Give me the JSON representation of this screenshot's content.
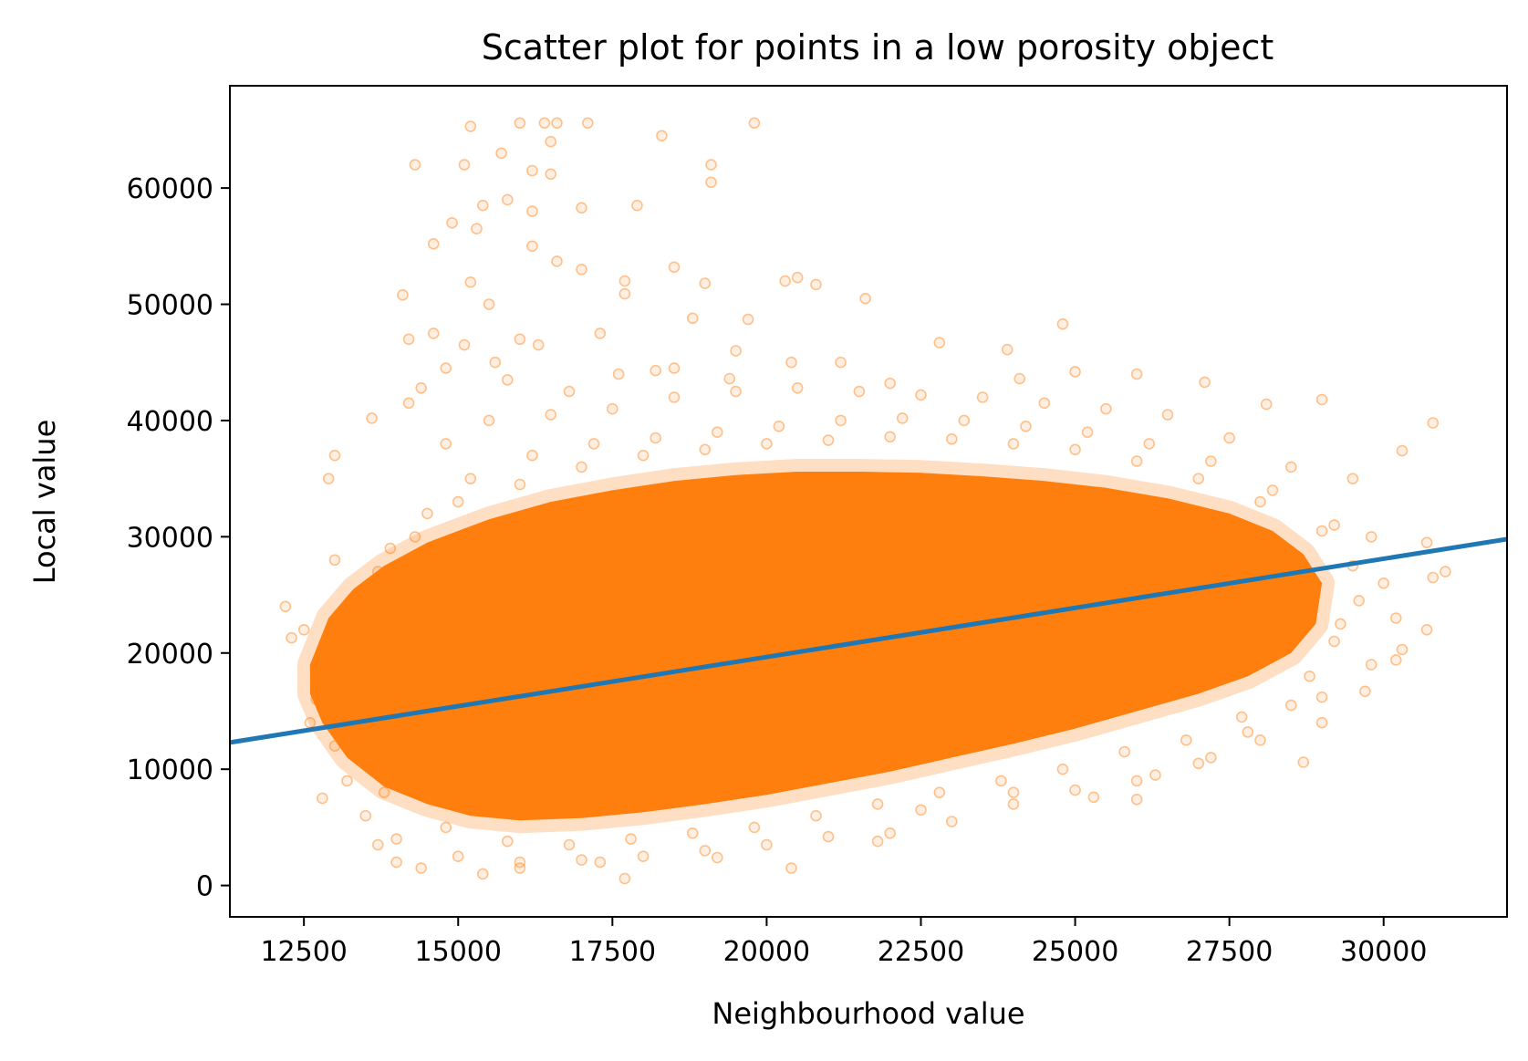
{
  "chart_data": {
    "type": "scatter",
    "title": "Scatter plot for points in a low porosity object",
    "xlabel": "Neighbourhood value",
    "ylabel": "Local value",
    "xlim": [
      11300,
      32000
    ],
    "ylim": [
      -2700,
      68800
    ],
    "x_ticks": [
      12500,
      15000,
      17500,
      20000,
      22500,
      25000,
      27500,
      30000
    ],
    "x_tick_labels": [
      "12500",
      "15000",
      "17500",
      "20000",
      "22500",
      "25000",
      "27500",
      "30000"
    ],
    "y_ticks": [
      0,
      10000,
      20000,
      30000,
      40000,
      50000,
      60000
    ],
    "y_tick_labels": [
      "0",
      "10000",
      "20000",
      "30000",
      "40000",
      "50000",
      "60000"
    ],
    "grid": false,
    "colors": {
      "points": "#ff7f0e",
      "fit_line": "#1f77b4"
    },
    "series": [
      {
        "kind": "scatter",
        "point_style": "hollow circles, low alpha",
        "points": [
          [
            15200,
            65300
          ],
          [
            16400,
            65600
          ],
          [
            16600,
            65600
          ],
          [
            17100,
            65600
          ],
          [
            19800,
            65600
          ],
          [
            16000,
            65600
          ],
          [
            15700,
            63000
          ],
          [
            16500,
            64000
          ],
          [
            18300,
            64500
          ],
          [
            19100,
            62000
          ],
          [
            19100,
            60500
          ],
          [
            15100,
            62000
          ],
          [
            14300,
            62000
          ],
          [
            16200,
            61500
          ],
          [
            16500,
            61200
          ],
          [
            15400,
            58500
          ],
          [
            15800,
            59000
          ],
          [
            16200,
            58000
          ],
          [
            17000,
            58300
          ],
          [
            17900,
            58500
          ],
          [
            15300,
            56500
          ],
          [
            14900,
            57000
          ],
          [
            14600,
            55200
          ],
          [
            16200,
            55000
          ],
          [
            16600,
            53700
          ],
          [
            17000,
            53000
          ],
          [
            17700,
            52000
          ],
          [
            18500,
            53200
          ],
          [
            19000,
            51800
          ],
          [
            20300,
            52000
          ],
          [
            20500,
            52300
          ],
          [
            20800,
            51700
          ],
          [
            21600,
            50500
          ],
          [
            14100,
            50800
          ],
          [
            15200,
            51900
          ],
          [
            15500,
            50000
          ],
          [
            17700,
            50900
          ],
          [
            18800,
            48800
          ],
          [
            19700,
            48700
          ],
          [
            24800,
            48300
          ],
          [
            22800,
            46700
          ],
          [
            23900,
            46100
          ],
          [
            19500,
            46000
          ],
          [
            14200,
            47000
          ],
          [
            14600,
            47500
          ],
          [
            16000,
            47000
          ],
          [
            17300,
            47500
          ],
          [
            13000,
            37000
          ],
          [
            12900,
            35000
          ],
          [
            12300,
            21300
          ],
          [
            12500,
            22000
          ],
          [
            12600,
            14000
          ],
          [
            12800,
            7500
          ],
          [
            13000,
            12000
          ],
          [
            13700,
            3500
          ],
          [
            14000,
            2000
          ],
          [
            14400,
            1500
          ],
          [
            15400,
            1000
          ],
          [
            16000,
            1500
          ],
          [
            17700,
            600
          ],
          [
            17300,
            2000
          ],
          [
            20400,
            1500
          ],
          [
            19200,
            2400
          ],
          [
            21800,
            3800
          ],
          [
            22500,
            6500
          ],
          [
            24000,
            8000
          ],
          [
            25300,
            7600
          ],
          [
            26000,
            7400
          ],
          [
            26300,
            9500
          ],
          [
            27200,
            11000
          ],
          [
            27800,
            13200
          ],
          [
            28700,
            10600
          ],
          [
            29000,
            16200
          ],
          [
            29700,
            16700
          ],
          [
            30200,
            19400
          ],
          [
            30300,
            20300
          ],
          [
            30700,
            22000
          ],
          [
            30800,
            26500
          ],
          [
            31000,
            27000
          ],
          [
            30700,
            29500
          ],
          [
            30800,
            39800
          ],
          [
            30300,
            37400
          ],
          [
            29000,
            41800
          ],
          [
            28100,
            41400
          ],
          [
            27100,
            43300
          ],
          [
            26000,
            44000
          ],
          [
            25000,
            44200
          ],
          [
            24100,
            43600
          ],
          [
            22000,
            43200
          ],
          [
            21200,
            45000
          ],
          [
            20400,
            45000
          ],
          [
            18500,
            44500
          ],
          [
            19400,
            43600
          ],
          [
            14200,
            41500
          ],
          [
            13600,
            40200
          ],
          [
            13000,
            28000
          ],
          [
            12200,
            24000
          ],
          [
            29500,
            35000
          ],
          [
            29800,
            30000
          ],
          [
            28500,
            36000
          ],
          [
            27500,
            38500
          ],
          [
            26500,
            40500
          ],
          [
            25500,
            41000
          ],
          [
            24500,
            41500
          ],
          [
            23500,
            42000
          ],
          [
            22500,
            42200
          ],
          [
            21500,
            42500
          ],
          [
            20500,
            42800
          ],
          [
            19500,
            42500
          ],
          [
            18500,
            42000
          ],
          [
            17500,
            41000
          ],
          [
            16500,
            40500
          ],
          [
            15500,
            40000
          ],
          [
            14800,
            38000
          ],
          [
            29000,
            14000
          ],
          [
            28000,
            12500
          ],
          [
            27000,
            10500
          ],
          [
            26000,
            9000
          ],
          [
            25000,
            8200
          ],
          [
            24000,
            7000
          ],
          [
            23000,
            5500
          ],
          [
            22000,
            4500
          ],
          [
            21000,
            4200
          ],
          [
            20000,
            3500
          ],
          [
            19000,
            3000
          ],
          [
            18000,
            2500
          ],
          [
            17000,
            2200
          ],
          [
            16000,
            2000
          ],
          [
            15000,
            2500
          ],
          [
            14000,
            4000
          ],
          [
            13500,
            6000
          ],
          [
            13200,
            9000
          ],
          [
            12700,
            16000
          ],
          [
            12900,
            19000
          ],
          [
            13400,
            25000
          ],
          [
            13900,
            29000
          ],
          [
            14500,
            32000
          ],
          [
            15200,
            35000
          ],
          [
            16200,
            37000
          ],
          [
            17200,
            38000
          ],
          [
            18200,
            38500
          ],
          [
            19200,
            39000
          ],
          [
            20200,
            39500
          ],
          [
            21200,
            40000
          ],
          [
            22200,
            40200
          ],
          [
            23200,
            40000
          ],
          [
            24200,
            39500
          ],
          [
            25200,
            39000
          ],
          [
            26200,
            38000
          ],
          [
            27200,
            36500
          ],
          [
            28200,
            34000
          ],
          [
            29200,
            31000
          ],
          [
            30000,
            26000
          ],
          [
            30200,
            23000
          ],
          [
            29800,
            19000
          ],
          [
            29200,
            21000
          ],
          [
            28800,
            18000
          ],
          [
            28500,
            15500
          ],
          [
            27700,
            14500
          ],
          [
            26800,
            12500
          ],
          [
            25800,
            11500
          ],
          [
            24800,
            10000
          ],
          [
            23800,
            9000
          ],
          [
            22800,
            8000
          ],
          [
            21800,
            7000
          ],
          [
            20800,
            6000
          ],
          [
            19800,
            5000
          ],
          [
            18800,
            4500
          ],
          [
            17800,
            4000
          ],
          [
            16800,
            3500
          ],
          [
            15800,
            3800
          ],
          [
            14800,
            5000
          ],
          [
            13800,
            8000
          ],
          [
            13300,
            13000
          ],
          [
            13100,
            22000
          ],
          [
            13700,
            27000
          ],
          [
            14300,
            30000
          ],
          [
            15000,
            33000
          ],
          [
            16000,
            34500
          ],
          [
            17000,
            36000
          ],
          [
            18000,
            37000
          ],
          [
            19000,
            37500
          ],
          [
            20000,
            38000
          ],
          [
            21000,
            38300
          ],
          [
            22000,
            38600
          ],
          [
            23000,
            38400
          ],
          [
            24000,
            38000
          ],
          [
            25000,
            37500
          ],
          [
            26000,
            36500
          ],
          [
            27000,
            35000
          ],
          [
            28000,
            33000
          ],
          [
            29000,
            30500
          ],
          [
            29500,
            27500
          ],
          [
            29600,
            24500
          ],
          [
            29300,
            22500
          ],
          [
            15600,
            45000
          ],
          [
            16300,
            46500
          ],
          [
            14800,
            44500
          ],
          [
            15800,
            43500
          ],
          [
            17600,
            44000
          ],
          [
            16800,
            42500
          ],
          [
            18200,
            44300
          ],
          [
            14400,
            42800
          ],
          [
            15100,
            46500
          ]
        ]
      },
      {
        "kind": "fill_band",
        "description": "dense cloud of overlapping points",
        "upper": [
          [
            12600,
            19000
          ],
          [
            12900,
            23000
          ],
          [
            13300,
            25500
          ],
          [
            13800,
            27500
          ],
          [
            14500,
            29500
          ],
          [
            15500,
            31500
          ],
          [
            16500,
            33000
          ],
          [
            17500,
            34000
          ],
          [
            18500,
            34800
          ],
          [
            19500,
            35300
          ],
          [
            20500,
            35600
          ],
          [
            21500,
            35600
          ],
          [
            22500,
            35500
          ],
          [
            23500,
            35200
          ],
          [
            24500,
            34800
          ],
          [
            25500,
            34200
          ],
          [
            26500,
            33300
          ],
          [
            27500,
            32000
          ],
          [
            28200,
            30500
          ],
          [
            28700,
            28500
          ],
          [
            29000,
            26000
          ]
        ],
        "lower": [
          [
            29000,
            26000
          ],
          [
            28900,
            22500
          ],
          [
            28500,
            20000
          ],
          [
            27800,
            18000
          ],
          [
            27000,
            16500
          ],
          [
            26000,
            15000
          ],
          [
            25000,
            13500
          ],
          [
            24000,
            12200
          ],
          [
            23000,
            11000
          ],
          [
            22000,
            9800
          ],
          [
            21000,
            8800
          ],
          [
            20000,
            7800
          ],
          [
            19000,
            7000
          ],
          [
            18000,
            6300
          ],
          [
            17000,
            5800
          ],
          [
            16000,
            5600
          ],
          [
            15200,
            6000
          ],
          [
            14500,
            7000
          ],
          [
            13800,
            8500
          ],
          [
            13200,
            11000
          ],
          [
            12800,
            14000
          ],
          [
            12600,
            16500
          ]
        ]
      },
      {
        "kind": "line",
        "name": "",
        "x": [
          11300,
          32000
        ],
        "y": [
          12300,
          29800
        ]
      }
    ]
  }
}
